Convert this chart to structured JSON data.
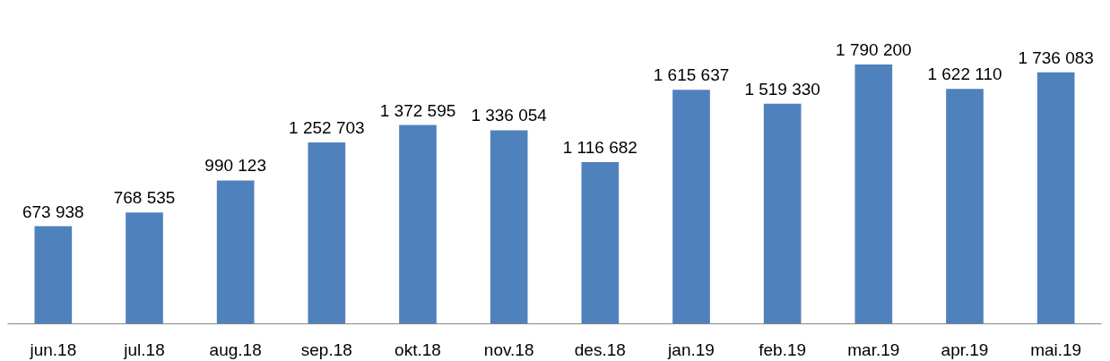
{
  "chart_data": {
    "type": "bar",
    "categories": [
      "jun.18",
      "jul.18",
      "aug.18",
      "sep.18",
      "okt.18",
      "nov.18",
      "des.18",
      "jan.19",
      "feb.19",
      "mar.19",
      "apr.19",
      "mai.19"
    ],
    "values": [
      673938,
      768535,
      990123,
      1252703,
      1372595,
      1336054,
      1116682,
      1615637,
      1519330,
      1790200,
      1622110,
      1736083
    ],
    "value_labels": [
      "673 938",
      "768 535",
      "990 123",
      "1 252 703",
      "1 372 595",
      "1 336 054",
      "1 116 682",
      "1 615 637",
      "1 519 330",
      "1 790 200",
      "1 622 110",
      "1 736 083"
    ],
    "color": "#4f81bd"
  }
}
